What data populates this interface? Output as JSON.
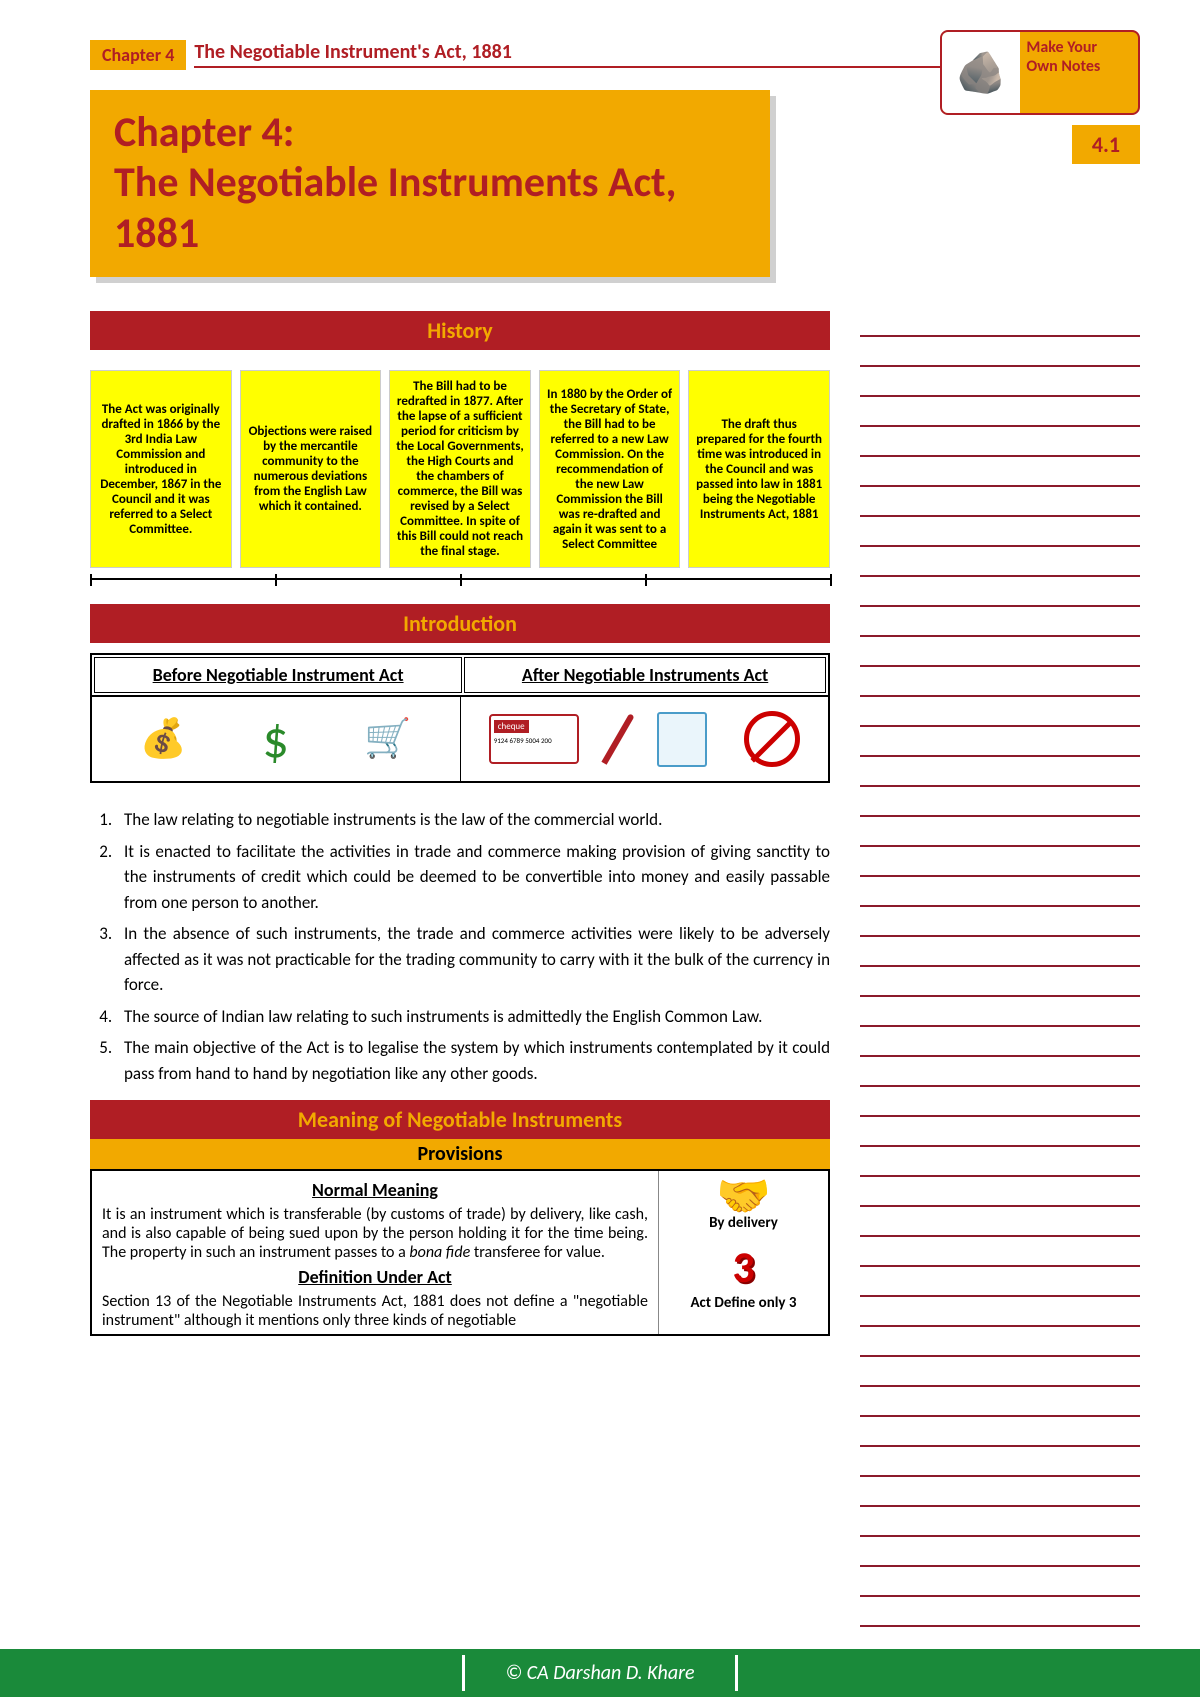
{
  "header": {
    "chapter_tab": "Chapter 4",
    "chapter_line": "The Negotiable Instrument's Act, 1881",
    "notes_badge": "Make Your Own Notes",
    "page_num": "4.1"
  },
  "main_title": "Chapter 4:\nThe Negotiable Instruments Act, 1881",
  "sections": {
    "history": "History",
    "introduction": "Introduction",
    "meaning": "Meaning of Negotiable Instruments",
    "provisions": "Provisions"
  },
  "timeline": [
    "The Act was originally drafted in 1866 by the 3rd India Law Commission and introduced in December, 1867 in the Council and it was referred to a Select Committee.",
    "Objections were raised by the mercantile community to the numerous deviations from the English Law which it contained.",
    "The Bill had to be redrafted in 1877. After the lapse of a sufficient period for criticism by the Local Governments, the High Courts and the chambers of commerce, the Bill was revised by a Select Committee. In spite of this Bill could not reach the final stage.",
    "In 1880 by the Order of the Secretary of State, the Bill had to be referred to a new Law Commission. On the recommendation of the new Law Commission the Bill was re-drafted and again it was sent to a Select Committee",
    "The draft thus prepared for the fourth time was introduced in the Council and was passed into law in 1881 being the Negotiable Instruments Act, 1881"
  ],
  "intro_table": {
    "before": "Before Negotiable Instrument Act",
    "after": "After Negotiable Instruments Act"
  },
  "intro_list": [
    "The law relating to negotiable instruments is the law of the commercial world.",
    "It is enacted to facilitate the activities in trade and commerce making provision of giving sanctity to the instruments of credit which could be deemed to be convertible into money and easily passable from one person to another.",
    "In the absence of such instruments, the trade and commerce activities were likely to be adversely affected as it was not practicable for the trading community to carry with it the bulk of the currency in force.",
    "The source of Indian law relating to such instruments is admittedly the English Common Law.",
    "The main objective of the Act is to legalise the system by which instruments contemplated by it could pass from hand to hand by negotiation like any other goods."
  ],
  "meaning": {
    "normal_h": "Normal Meaning",
    "normal_t": "It is an instrument which is transferable (by customs of trade) by delivery, like cash, and is also capable of being sued upon by the person holding it for the time being. The property in such an instrument passes to a bona fide transferee for value.",
    "def_h": "Definition Under Act",
    "def_t": "Section 13 of the Negotiable Instruments Act, 1881 does not define a \"negotiable instrument\" although it mentions only three kinds of negotiable",
    "r1": "By delivery",
    "r2": "Act Define only 3"
  },
  "footer": "© CA Darshan D. Khare",
  "cheque_label": "cheque",
  "cheque_num": "9124 6789 5004 200",
  "notes_count": 45
}
